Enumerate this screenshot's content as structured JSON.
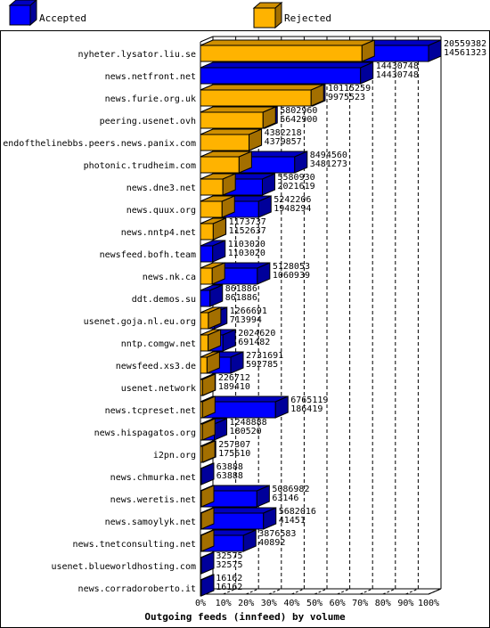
{
  "colors": {
    "accepted": "#0000ff",
    "accepted_dark": "#00009a",
    "accepted_top": "#0000c0",
    "rejected": "#ffb300",
    "rejected_dark": "#a36f00",
    "rejected_top": "#d08f00",
    "frame": "#000000",
    "background": "#ffffff"
  },
  "legend": {
    "accepted_label": "Accepted",
    "rejected_label": "Rejected"
  },
  "chart_data": {
    "type": "bar",
    "orientation": "horizontal",
    "stacked": false,
    "xlabel": "Outgoing feeds (innfeed) by volume",
    "xlim": [
      0,
      100
    ],
    "x_ticks": [
      "0%",
      "10%",
      "20%",
      "30%",
      "40%",
      "50%",
      "60%",
      "70%",
      "80%",
      "90%",
      "100%"
    ],
    "grid": "vertical dashed",
    "legend_position": "top",
    "series": [
      {
        "name": "Accepted",
        "color": "#0000ff"
      },
      {
        "name": "Rejected",
        "color": "#ffb300"
      }
    ],
    "rows": [
      {
        "label": "nyheter.lysator.liu.se",
        "accepted": 20559382,
        "rejected": 14561323
      },
      {
        "label": "news.netfront.net",
        "accepted": 14430748,
        "rejected": 14430748
      },
      {
        "label": "news.furie.org.uk",
        "accepted": 10115259,
        "rejected": 9975523
      },
      {
        "label": "peering.usenet.ovh",
        "accepted": 5802960,
        "rejected": 5642900
      },
      {
        "label": "endofthelinebbs.peers.news.panix.com",
        "accepted": 4382218,
        "rejected": 4379857
      },
      {
        "label": "photonic.trudheim.com",
        "accepted": 8494560,
        "rejected": 3481273
      },
      {
        "label": "news.dne3.net",
        "accepted": 5580930,
        "rejected": 2021619
      },
      {
        "label": "news.quux.org",
        "accepted": 5242206,
        "rejected": 1948294
      },
      {
        "label": "news.nntp4.net",
        "accepted": 1173737,
        "rejected": 1152637
      },
      {
        "label": "newsfeed.bofh.team",
        "accepted": 1103020,
        "rejected": 1103020
      },
      {
        "label": "news.nk.ca",
        "accepted": 5128053,
        "rejected": 1060939
      },
      {
        "label": "ddt.demos.su",
        "accepted": 861886,
        "rejected": 861886
      },
      {
        "label": "usenet.goja.nl.eu.org",
        "accepted": 1266691,
        "rejected": 713994
      },
      {
        "label": "nntp.comgw.net",
        "accepted": 2024620,
        "rejected": 691482
      },
      {
        "label": "newsfeed.xs3.de",
        "accepted": 2731691,
        "rejected": 592785
      },
      {
        "label": "usenet.network",
        "accepted": 226712,
        "rejected": 189410
      },
      {
        "label": "news.tcpreset.net",
        "accepted": 6765119,
        "rejected": 186419
      },
      {
        "label": "news.hispagatos.org",
        "accepted": 1248888,
        "rejected": 180520
      },
      {
        "label": "i2pn.org",
        "accepted": 257307,
        "rejected": 175610
      },
      {
        "label": "news.chmurka.net",
        "accepted": 63888,
        "rejected": 63888
      },
      {
        "label": "news.weretis.net",
        "accepted": 5086982,
        "rejected": 63146
      },
      {
        "label": "news.samoylyk.net",
        "accepted": 5682016,
        "rejected": 41451
      },
      {
        "label": "news.tnetconsulting.net",
        "accepted": 3876583,
        "rejected": 40892
      },
      {
        "label": "usenet.blueworldhosting.com",
        "accepted": 32575,
        "rejected": 32575
      },
      {
        "label": "news.corradoroberto.it",
        "accepted": 16162,
        "rejected": 16162
      }
    ]
  }
}
